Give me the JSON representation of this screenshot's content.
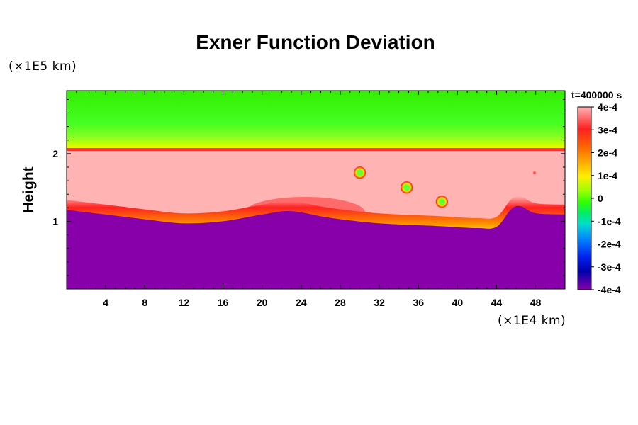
{
  "chart_data": {
    "type": "heatmap",
    "title": "Exner Function Deviation",
    "ylabel": "Height",
    "y_scale_label": "(×1E5 km)",
    "x_scale_label": "(×1E4 km)",
    "time_label": "t=400000 s",
    "xlim": [
      0,
      51
    ],
    "ylim": [
      0,
      2.93
    ],
    "x_ticks": [
      4,
      8,
      12,
      16,
      20,
      24,
      28,
      32,
      36,
      40,
      44,
      48
    ],
    "y_ticks": [
      1,
      2
    ],
    "colorbar": {
      "range": [
        -0.0004,
        0.0004
      ],
      "tick_values": [
        0.0004,
        0.0003,
        0.0002,
        0.0001,
        0,
        -0.0001,
        -0.0002,
        -0.0003,
        -0.0004
      ],
      "tick_labels": [
        "4e-4",
        "3e-4",
        "2e-4",
        "1e-4",
        "0",
        "-1e-4",
        "-2e-4",
        "-3e-4",
        "-4e-4"
      ],
      "colors": [
        "#ffb3b3",
        "#ff2020",
        "#ff9900",
        "#ffee00",
        "#33ff00",
        "#00dd99",
        "#0088ff",
        "#0000cc",
        "#8800aa"
      ]
    },
    "regions": {
      "upper_layer_top": 2.05,
      "interface_points": [
        [
          0,
          1.17
        ],
        [
          4,
          1.1
        ],
        [
          8,
          1.03
        ],
        [
          12,
          0.97
        ],
        [
          16,
          1.0
        ],
        [
          20,
          1.1
        ],
        [
          23,
          1.15
        ],
        [
          27,
          1.05
        ],
        [
          32,
          0.97
        ],
        [
          38,
          0.93
        ],
        [
          42,
          0.9
        ],
        [
          44,
          0.92
        ],
        [
          45.5,
          1.18
        ],
        [
          46.5,
          1.22
        ],
        [
          48,
          1.12
        ],
        [
          51,
          1.1
        ]
      ],
      "bubbles": [
        [
          30,
          1.72
        ],
        [
          34.8,
          1.5
        ],
        [
          38.4,
          1.29
        ]
      ]
    }
  }
}
